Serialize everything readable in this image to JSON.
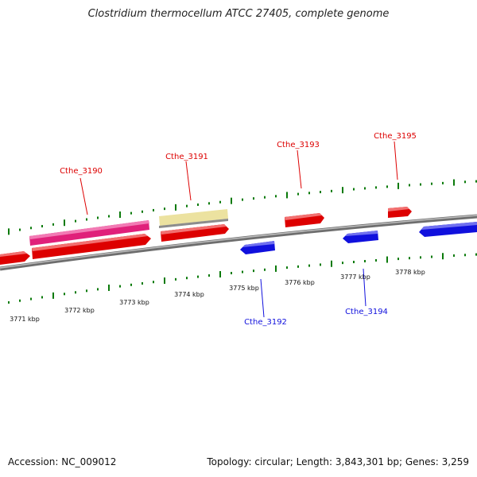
{
  "title": "Clostridium thermocellum ATCC 27405, complete genome",
  "footer": {
    "accession": "Accession: NC_009012",
    "summary": "Topology: circular; Length: 3,843,301 bp; Genes: 3,259"
  },
  "scale_labels": [
    "3771 kbp",
    "3772 kbp",
    "3773 kbp",
    "3774 kbp",
    "3775 kbp",
    "3776 kbp",
    "3777 kbp",
    "3778 kbp"
  ],
  "gene_labels": {
    "top": [
      "Cthe_3190",
      "Cthe_3191",
      "Cthe_3193",
      "Cthe_3195"
    ],
    "bottom": [
      "Cthe_3192",
      "Cthe_3194"
    ]
  },
  "colors": {
    "forward_gene": "#dd0000",
    "reverse_gene": "#1010dd",
    "magenta_feature": "#e0207a",
    "pale_feature": "#ece2a0",
    "backbone": "#888888",
    "tick": "#0a7a0a"
  }
}
